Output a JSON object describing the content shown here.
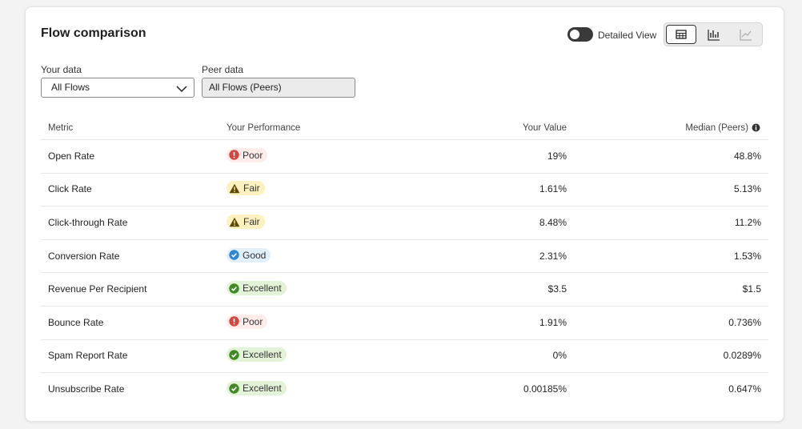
{
  "header": {
    "title": "Flow comparison",
    "toggle_label": "Detailed View"
  },
  "filters": {
    "your_data": {
      "label": "Your data",
      "value": "All Flows"
    },
    "peer_data": {
      "label": "Peer data",
      "value": "All Flows (Peers)"
    }
  },
  "table": {
    "columns": [
      "Metric",
      "Your Performance",
      "Your Value",
      "Median (Peers)"
    ],
    "rows": [
      {
        "metric": "Open Rate",
        "performance": {
          "label": "Poor",
          "icon": "error",
          "color": "#d6453d",
          "background": "#fdecea"
        },
        "value": "19%",
        "median": "48.8%"
      },
      {
        "metric": "Click Rate",
        "performance": {
          "label": "Fair",
          "icon": "warning",
          "color": "#5c4a00",
          "background": "#fcf1bf"
        },
        "value": "1.61%",
        "median": "5.13%"
      },
      {
        "metric": "Click-through Rate",
        "performance": {
          "label": "Fair",
          "icon": "warning",
          "color": "#5c4a00",
          "background": "#fcf1bf"
        },
        "value": "8.48%",
        "median": "11.2%"
      },
      {
        "metric": "Conversion Rate",
        "performance": {
          "label": "Good",
          "icon": "check",
          "color": "#2b86d6",
          "background": "#e1f0fb"
        },
        "value": "2.31%",
        "median": "1.53%"
      },
      {
        "metric": "Revenue Per Recipient",
        "performance": {
          "label": "Excellent",
          "icon": "check",
          "color": "#3f8a24",
          "background": "#e3f3d7"
        },
        "value": "$3.5",
        "median": "$1.5"
      },
      {
        "metric": "Bounce Rate",
        "performance": {
          "label": "Poor",
          "icon": "error",
          "color": "#d6453d",
          "background": "#fdecea"
        },
        "value": "1.91%",
        "median": "0.736%"
      },
      {
        "metric": "Spam Report Rate",
        "performance": {
          "label": "Excellent",
          "icon": "check",
          "color": "#3f8a24",
          "background": "#e3f3d7"
        },
        "value": "0%",
        "median": "0.0289%"
      },
      {
        "metric": "Unsubscribe Rate",
        "performance": {
          "label": "Excellent",
          "icon": "check",
          "color": "#3f8a24",
          "background": "#e3f3d7"
        },
        "value": "0.00185%",
        "median": "0.647%"
      }
    ]
  }
}
